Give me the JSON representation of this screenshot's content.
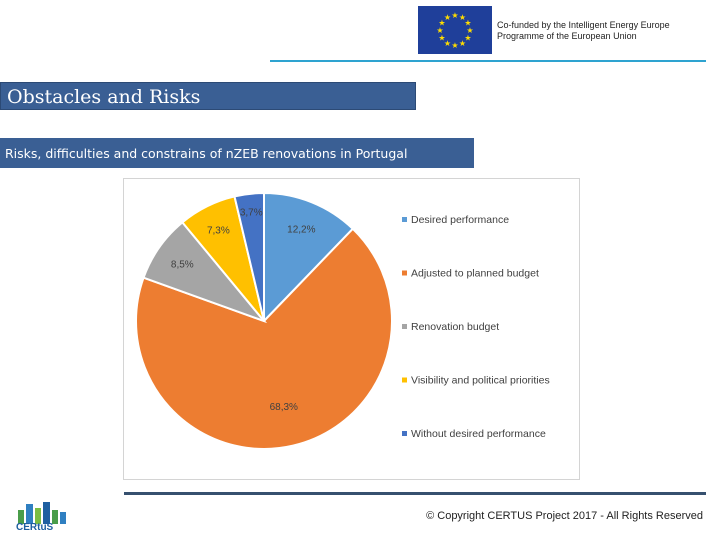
{
  "header": {
    "eu_line1": "Co-funded by the Intelligent Energy Europe",
    "eu_line2": "Programme of the European Union"
  },
  "title": "Obstacles and Risks",
  "subtitle": "Risks, difficulties and constrains of nZEB renovations  in Portugal",
  "chart_data": {
    "type": "pie",
    "series": [
      {
        "label": "Desired performance",
        "value": 12.2,
        "display": "12,2%",
        "color": "#5b9bd5"
      },
      {
        "label": "Adjusted to planned budget",
        "value": 68.3,
        "display": "68,3%",
        "color": "#ed7d31"
      },
      {
        "label": "Renovation budget",
        "value": 8.5,
        "display": "8,5%",
        "color": "#a5a5a5"
      },
      {
        "label": "Visibility and political priorities",
        "value": 7.3,
        "display": "7,3%",
        "color": "#ffc000"
      },
      {
        "label": "Without desired performance",
        "value": 3.7,
        "display": "3,7%",
        "color": "#4472c4"
      }
    ],
    "legend_position": "right"
  },
  "footer": {
    "logo_text": "CERtuS",
    "copyright": "© Copyright CERTUS Project 2017 - All Rights Reserved"
  }
}
